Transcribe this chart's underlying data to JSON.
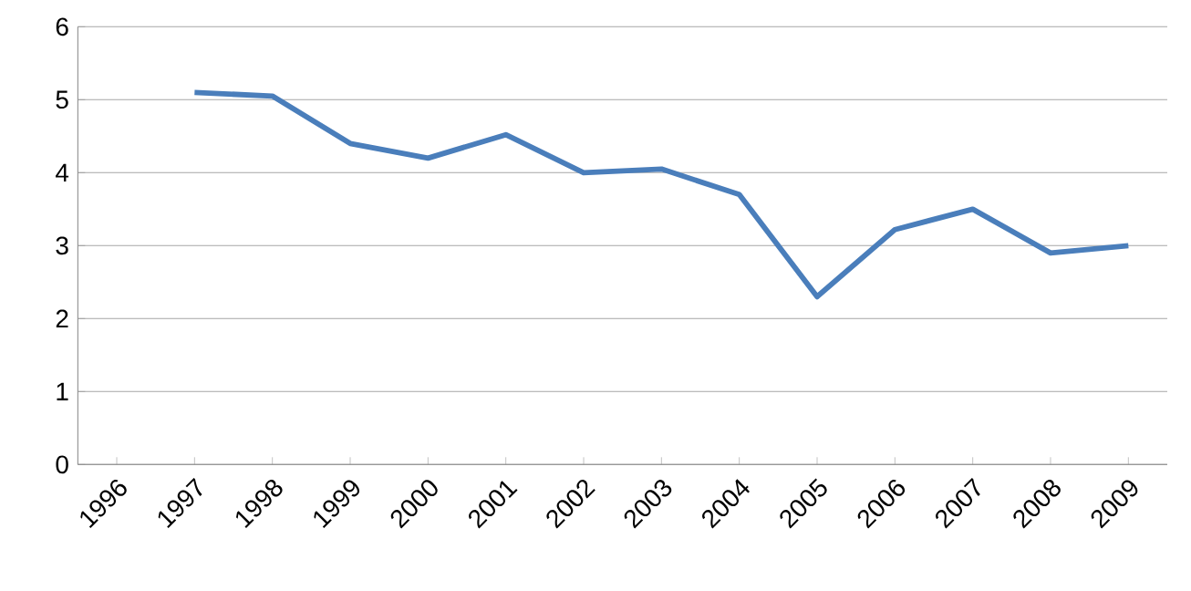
{
  "chart_data": {
    "type": "line",
    "categories": [
      "1996",
      "1997",
      "1998",
      "1999",
      "2000",
      "2001",
      "2002",
      "2003",
      "2004",
      "2005",
      "2006",
      "2007",
      "2008",
      "2009"
    ],
    "series": [
      {
        "color": "#4a7ebb",
        "values": [
          null,
          5.1,
          5.05,
          4.4,
          4.2,
          4.52,
          4.0,
          4.05,
          3.7,
          2.3,
          3.22,
          3.5,
          2.9,
          3.0
        ]
      }
    ],
    "ylim": [
      0,
      6
    ],
    "yticks": [
      0,
      1,
      2,
      3,
      4,
      5,
      6
    ],
    "grid": "y",
    "marker": "none",
    "line_style": "solid"
  }
}
